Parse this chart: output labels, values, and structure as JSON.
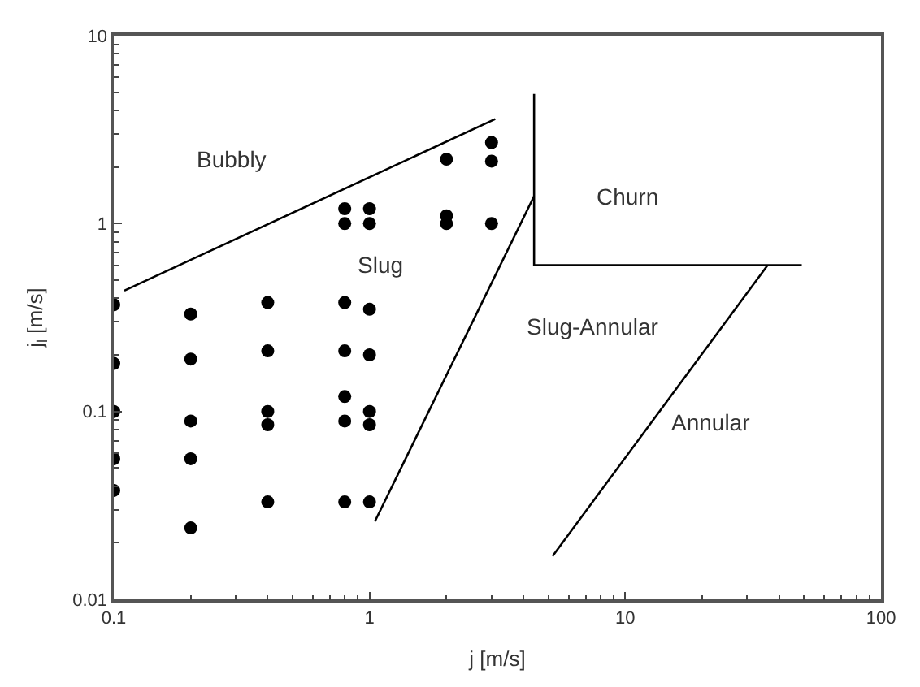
{
  "chart_data": {
    "type": "scatter",
    "xlabel": "j [m/s]",
    "ylabel": "j$_{l}$ [m/s]",
    "log": "xy",
    "xlim": [
      0.1,
      100
    ],
    "xticks": [
      0.1,
      1,
      10,
      100
    ],
    "ylim": [
      0.01,
      10
    ],
    "yticks": [
      0.01,
      0.1,
      1,
      10
    ],
    "series": [
      {
        "marker": "circle",
        "color": "#000000",
        "x": [
          0.1,
          0.1,
          0.1,
          0.1,
          0.1,
          0.2,
          0.2,
          0.2,
          0.2,
          0.2,
          0.4,
          0.4,
          0.4,
          0.4,
          0.4,
          0.8,
          0.8,
          0.8,
          0.8,
          0.8,
          1,
          1,
          1,
          1,
          1,
          0.8,
          0.8,
          1,
          1,
          2,
          2,
          2,
          3,
          3,
          3
        ],
        "values": [
          0.37,
          0.18,
          0.1,
          0.056,
          0.038,
          0.33,
          0.19,
          0.089,
          0.056,
          0.024,
          0.38,
          0.21,
          0.1,
          0.085,
          0.033,
          0.38,
          0.21,
          0.12,
          0.089,
          0.033,
          0.35,
          0.2,
          0.1,
          0.085,
          0.033,
          1.2,
          1.0,
          1.2,
          1.0,
          2.2,
          1.1,
          1.0,
          2.7,
          2.15,
          1.0
        ]
      },
      {
        "type": "line",
        "color": "#000000",
        "line_style": "solid",
        "x": [
          0.11,
          3.1
        ],
        "values": [
          0.44,
          3.6
        ]
      },
      {
        "type": "line",
        "color": "#000000",
        "line_style": "solid",
        "x": [
          1.05,
          4.4
        ],
        "values": [
          0.026,
          1.4
        ]
      },
      {
        "type": "line",
        "color": "#000000",
        "line_style": "solid",
        "x": [
          4.4,
          4.4,
          49
        ],
        "values": [
          4.9,
          0.6,
          0.6
        ]
      },
      {
        "type": "line",
        "color": "#000000",
        "line_style": "solid",
        "x": [
          5.2,
          36
        ],
        "values": [
          0.017,
          0.6
        ]
      }
    ],
    "annotations": [
      "Bubbly",
      "Slug",
      "Churn",
      "Slug-Annular",
      "Annular"
    ]
  }
}
